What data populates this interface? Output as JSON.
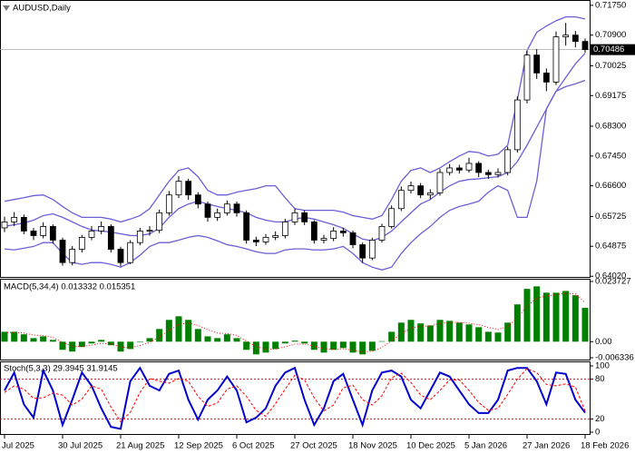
{
  "chart_data": [
    {
      "type": "candlestick",
      "title": "AUDUSD,Daily",
      "categories": [
        "Jul 2025",
        null,
        null,
        null,
        null,
        null,
        "30 Jul 2025",
        null,
        null,
        null,
        null,
        null,
        "21 Aug 2025",
        null,
        null,
        null,
        null,
        null,
        "12 Sep 2025",
        null,
        null,
        null,
        null,
        null,
        "6 Oct 2025",
        null,
        null,
        null,
        null,
        null,
        "27 Oct 2025",
        null,
        null,
        null,
        null,
        null,
        "18 Nov 2025",
        null,
        null,
        null,
        null,
        null,
        "10 Dec 2025",
        null,
        null,
        null,
        null,
        null,
        "5 Jan 2026",
        null,
        null,
        null,
        null,
        null,
        "27 Jan 2026",
        null,
        null,
        null,
        null,
        null,
        "18 Feb 2026"
      ],
      "open": [
        0.654,
        0.6557,
        0.657,
        0.6531,
        0.6518,
        0.6544,
        0.6505,
        0.6441,
        0.6479,
        0.6513,
        0.6531,
        0.6544,
        0.6479,
        0.6441,
        0.6498,
        0.6531,
        0.6533,
        0.6583,
        0.6634,
        0.6673,
        0.6634,
        0.6608,
        0.657,
        0.6583,
        0.6608,
        0.6583,
        0.6505,
        0.65,
        0.6513,
        0.6518,
        0.6557,
        0.6583,
        0.6557,
        0.6505,
        0.651,
        0.6531,
        0.6526,
        0.6492,
        0.6454,
        0.6505,
        0.6544,
        0.6595,
        0.6647,
        0.666,
        0.6634,
        0.664,
        0.6698,
        0.6711,
        0.6705,
        0.6724,
        0.6698,
        0.6692,
        0.6698,
        0.6763,
        0.6905,
        0.7033,
        0.6982,
        0.6956,
        0.7085,
        0.709,
        0.7072
      ],
      "high": [
        0.6572,
        0.6585,
        0.6578,
        0.654,
        0.6556,
        0.655,
        0.6512,
        0.6488,
        0.652,
        0.6545,
        0.6558,
        0.655,
        0.6486,
        0.6505,
        0.654,
        0.6545,
        0.6592,
        0.6645,
        0.6688,
        0.668,
        0.6642,
        0.6615,
        0.6595,
        0.6618,
        0.6615,
        0.659,
        0.6515,
        0.6522,
        0.653,
        0.6566,
        0.6595,
        0.659,
        0.6562,
        0.652,
        0.6542,
        0.654,
        0.6532,
        0.6498,
        0.6512,
        0.6552,
        0.6604,
        0.6658,
        0.6672,
        0.6668,
        0.665,
        0.6708,
        0.6722,
        0.672,
        0.674,
        0.673,
        0.6706,
        0.671,
        0.6772,
        0.6915,
        0.7045,
        0.705,
        0.6995,
        0.71,
        0.7125,
        0.7102,
        0.708
      ],
      "low": [
        0.6528,
        0.6545,
        0.6522,
        0.6505,
        0.651,
        0.6495,
        0.6432,
        0.6433,
        0.647,
        0.6505,
        0.6522,
        0.647,
        0.643,
        0.6436,
        0.649,
        0.6518,
        0.6525,
        0.6575,
        0.6625,
        0.662,
        0.6596,
        0.6558,
        0.656,
        0.6575,
        0.6572,
        0.6495,
        0.6488,
        0.6492,
        0.6505,
        0.651,
        0.6548,
        0.6548,
        0.6495,
        0.6496,
        0.6502,
        0.6515,
        0.6482,
        0.644,
        0.6448,
        0.6498,
        0.6538,
        0.6588,
        0.6638,
        0.6625,
        0.6622,
        0.6632,
        0.669,
        0.6695,
        0.6698,
        0.6685,
        0.668,
        0.6684,
        0.669,
        0.6755,
        0.6895,
        0.6965,
        0.693,
        0.6948,
        0.706,
        0.7055,
        0.704
      ],
      "close": [
        0.6557,
        0.657,
        0.6531,
        0.6518,
        0.6544,
        0.6505,
        0.6441,
        0.6479,
        0.6513,
        0.6531,
        0.6544,
        0.6479,
        0.6441,
        0.6498,
        0.6531,
        0.6533,
        0.6583,
        0.6634,
        0.6673,
        0.6634,
        0.6608,
        0.657,
        0.6583,
        0.6608,
        0.6583,
        0.6505,
        0.65,
        0.6513,
        0.6518,
        0.6557,
        0.6583,
        0.6557,
        0.6505,
        0.651,
        0.6531,
        0.6526,
        0.6492,
        0.6454,
        0.6505,
        0.6544,
        0.6595,
        0.6647,
        0.666,
        0.6634,
        0.664,
        0.6698,
        0.6711,
        0.6705,
        0.6724,
        0.6698,
        0.6692,
        0.6698,
        0.6763,
        0.6905,
        0.7033,
        0.6982,
        0.6956,
        0.7085,
        0.709,
        0.7072,
        0.70486
      ],
      "color_up": "#ffffff",
      "color_down": "#000000",
      "line_color": "#000000",
      "bands": [
        {
          "color": "#6b5fd6",
          "values": [
            0.6616,
            0.6621,
            0.6626,
            0.6632,
            0.6634,
            0.6621,
            0.6601,
            0.6583,
            0.657,
            0.657,
            0.657,
            0.6565,
            0.6557,
            0.6565,
            0.6575,
            0.6595,
            0.6634,
            0.6673,
            0.6704,
            0.6711,
            0.6686,
            0.6647,
            0.6634,
            0.6634,
            0.6642,
            0.6647,
            0.6652,
            0.666,
            0.666,
            0.6626,
            0.6595,
            0.659,
            0.659,
            0.659,
            0.659,
            0.6585,
            0.6575,
            0.657,
            0.6565,
            0.6575,
            0.6621,
            0.6673,
            0.6704,
            0.6711,
            0.6698,
            0.6711,
            0.6729,
            0.6745,
            0.6758,
            0.6755,
            0.6745,
            0.675,
            0.6776,
            0.6905,
            0.7046,
            0.7098,
            0.7116,
            0.7131,
            0.7142,
            0.7142,
            0.7136
          ]
        },
        {
          "color": "#6b5fd6",
          "values": [
            0.6544,
            0.6549,
            0.6554,
            0.6562,
            0.6575,
            0.658,
            0.657,
            0.6557,
            0.6544,
            0.6534,
            0.6531,
            0.6528,
            0.6523,
            0.6518,
            0.6518,
            0.6523,
            0.6539,
            0.657,
            0.6595,
            0.6608,
            0.6616,
            0.6608,
            0.6601,
            0.6595,
            0.659,
            0.6583,
            0.657,
            0.6562,
            0.6557,
            0.6557,
            0.6565,
            0.657,
            0.6565,
            0.6557,
            0.6549,
            0.6539,
            0.6523,
            0.6508,
            0.6503,
            0.6513,
            0.6531,
            0.6557,
            0.6583,
            0.6608,
            0.6621,
            0.6642,
            0.666,
            0.6673,
            0.6678,
            0.668,
            0.6683,
            0.6686,
            0.6698,
            0.6729,
            0.6776,
            0.6827,
            0.6879,
            0.693,
            0.6969,
            0.7008,
            0.7038
          ]
        },
        {
          "color": "#6b5fd6",
          "values": [
            0.648,
            0.6477,
            0.6482,
            0.6487,
            0.6498,
            0.6498,
            0.6467,
            0.6441,
            0.6436,
            0.6441,
            0.6441,
            0.6436,
            0.6428,
            0.6441,
            0.6462,
            0.6487,
            0.6498,
            0.6498,
            0.6505,
            0.6513,
            0.6518,
            0.6513,
            0.6503,
            0.6492,
            0.6487,
            0.648,
            0.6472,
            0.6467,
            0.6467,
            0.6477,
            0.648,
            0.648,
            0.6477,
            0.6477,
            0.648,
            0.6487,
            0.6467,
            0.6441,
            0.6428,
            0.642,
            0.6428,
            0.6467,
            0.6498,
            0.6523,
            0.6544,
            0.657,
            0.659,
            0.6601,
            0.6608,
            0.6616,
            0.6642,
            0.666,
            0.6647,
            0.657,
            0.657,
            0.6673,
            0.6879,
            0.693,
            0.6943,
            0.6951,
            0.6961
          ]
        }
      ],
      "current_price": 0.70486,
      "ylim": [
        0.64,
        0.7185
      ],
      "yticks": [
        {
          "value": 0.7175,
          "label": "0.71750"
        },
        {
          "value": 0.709,
          "label": "0.70900"
        },
        0.70025,
        0.69175,
        {
          "value": 0.683,
          "label": "0.68300"
        },
        {
          "value": 0.6745,
          "label": "0.67450"
        },
        {
          "value": 0.666,
          "label": "0.66600"
        },
        0.65725,
        0.64875,
        {
          "value": 0.6402,
          "label": "0.64020"
        }
      ]
    },
    {
      "type": "bar",
      "title": "MACD(5,34,4) 0.013332 0.015351",
      "series": [
        {
          "style": "bar",
          "color": "#008000",
          "values": [
            0.0039,
            0.0039,
            0.0029,
            0.0014,
            0.0021,
            0.0007,
            -0.0032,
            -0.0039,
            -0.0021,
            -0.0007,
            0.0007,
            -0.0014,
            -0.0039,
            -0.0029,
            -0.0002,
            0.0014,
            0.005,
            0.0086,
            0.01,
            0.0086,
            0.005,
            0.0021,
            0.0014,
            0.0029,
            0.0014,
            -0.0032,
            -0.005,
            -0.0043,
            -0.0029,
            -0.0007,
            0.0004,
            -0.0007,
            -0.0032,
            -0.0043,
            -0.0032,
            -0.0025,
            -0.0043,
            -0.005,
            -0.0036,
            0.0002,
            0.0039,
            0.0075,
            0.0086,
            0.0072,
            0.0064,
            0.0086,
            0.0082,
            0.0075,
            0.0068,
            0.0057,
            0.0039,
            0.0036,
            0.0075,
            0.0147,
            0.0208,
            0.0218,
            0.0193,
            0.0193,
            0.02,
            0.0183,
            0.013332
          ]
        },
        {
          "style": "dotted",
          "color": "#ff0000",
          "values": [
            0.0035,
            0.0037,
            0.0034,
            0.0026,
            0.0024,
            0.0017,
            -0.0003,
            -0.0018,
            -0.0019,
            -0.0014,
            -0.0006,
            -0.0009,
            -0.0021,
            -0.0024,
            -0.0015,
            -0.0003,
            0.0018,
            0.0045,
            0.0067,
            0.0074,
            0.0064,
            0.0047,
            0.0034,
            0.0032,
            0.0025,
            0.0002,
            -0.0019,
            -0.0029,
            -0.0029,
            -0.002,
            -0.001,
            -0.0009,
            -0.0018,
            -0.0028,
            -0.003,
            -0.0028,
            -0.0034,
            -0.004,
            -0.0038,
            -0.0022,
            0.0003,
            0.0032,
            0.0054,
            0.0061,
            0.0062,
            0.0072,
            0.0076,
            0.0076,
            0.0073,
            0.0067,
            0.0056,
            0.0048,
            0.0059,
            0.0094,
            0.014,
            0.0171,
            0.018,
            0.0185,
            0.0191,
            0.0188,
            0.015351
          ]
        }
      ],
      "ylim": [
        -0.006336,
        0.023727
      ],
      "yticks": [
        0.023727,
        {
          "value": 0,
          "label": "0.00"
        },
        -0.006336
      ]
    },
    {
      "type": "line",
      "title": "Stoch(5,3,3) 29.3945 31.9145",
      "series": [
        {
          "style": "solid",
          "color": "#0000cd",
          "values": [
            63,
            90,
            42,
            22,
            93,
            63,
            11,
            49,
            90,
            70,
            36,
            8,
            5,
            77,
            97,
            70,
            63,
            88,
            93,
            49,
            19,
            49,
            63,
            84,
            63,
            15,
            22,
            36,
            70,
            90,
            97,
            49,
            11,
            36,
            77,
            88,
            49,
            11,
            63,
            90,
            93,
            84,
            49,
            36,
            63,
            90,
            84,
            63,
            42,
            29,
            29,
            49,
            93,
            97,
            97,
            77,
            42,
            90,
            88,
            49,
            29.3945
          ]
        },
        {
          "style": "dashed",
          "color": "#ff0000",
          "values": [
            60,
            70,
            65,
            51,
            52,
            59,
            56,
            41,
            50,
            70,
            65,
            38,
            16,
            30,
            60,
            81,
            77,
            74,
            81,
            77,
            54,
            39,
            44,
            65,
            70,
            54,
            33,
            24,
            43,
            65,
            86,
            79,
            52,
            32,
            41,
            67,
            71,
            49,
            41,
            55,
            82,
            89,
            75,
            56,
            49,
            63,
            79,
            79,
            63,
            45,
            33,
            36,
            57,
            80,
            96,
            90,
            72,
            70,
            73,
            68,
            31.9145
          ]
        }
      ],
      "levels": [
        80,
        20
      ],
      "level_color": "#b22222",
      "ylim": [
        0,
        100
      ],
      "yticks": [
        100,
        80,
        20,
        0
      ]
    }
  ]
}
